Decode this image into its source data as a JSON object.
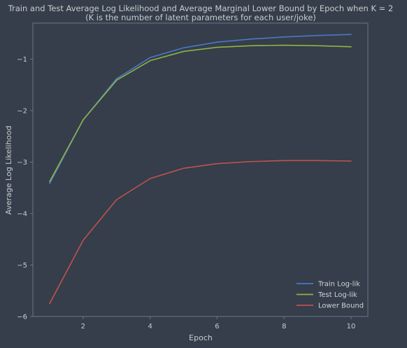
{
  "chart_data": {
    "type": "line",
    "title": "Train and Test Average Log Likelihood and Average Marginal Lower Bound by Epoch when K = 2",
    "subtitle": "(K is the number of latent parameters for each user/joke)",
    "xlabel": "Epoch",
    "ylabel": "Average Log Likelihood",
    "xlim": [
      0.5,
      10.5
    ],
    "ylim": [
      -6.0,
      -0.3
    ],
    "xticks": [
      2,
      4,
      6,
      8,
      10
    ],
    "yticks": [
      -6,
      -5,
      -4,
      -3,
      -2,
      -1
    ],
    "xtick_labels": [
      "2",
      "4",
      "6",
      "8",
      "10"
    ],
    "ytick_labels": [
      "−6",
      "−5",
      "−4",
      "−3",
      "−2",
      "−1"
    ],
    "grid": false,
    "legend_position": "lower-right",
    "x": [
      1,
      2,
      3,
      4,
      5,
      6,
      7,
      8,
      9,
      10
    ],
    "series": [
      {
        "name": "Train Log-lik",
        "color": "#4a78c8",
        "values": [
          -3.42,
          -2.18,
          -1.38,
          -0.97,
          -0.78,
          -0.67,
          -0.61,
          -0.57,
          -0.54,
          -0.52
        ]
      },
      {
        "name": "Test Log-lik",
        "color": "#8db444",
        "values": [
          -3.38,
          -2.18,
          -1.41,
          -1.03,
          -0.85,
          -0.77,
          -0.74,
          -0.73,
          -0.74,
          -0.76
        ]
      },
      {
        "name": "Lower Bound",
        "color": "#c0524e",
        "values": [
          -5.75,
          -4.52,
          -3.73,
          -3.32,
          -3.12,
          -3.03,
          -2.99,
          -2.97,
          -2.97,
          -2.98
        ]
      }
    ],
    "colors": {
      "background": "#353e4a",
      "frame": "#6c7686",
      "text": "#c9ccd1"
    }
  }
}
